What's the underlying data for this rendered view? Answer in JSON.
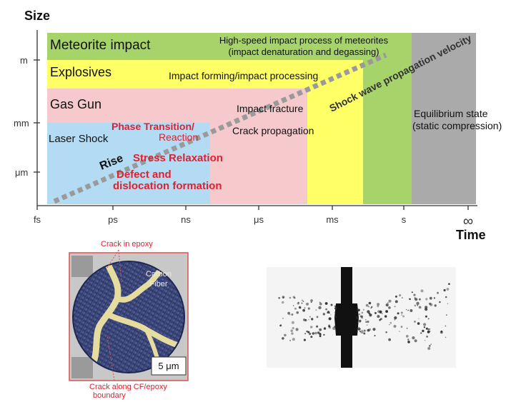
{
  "axes": {
    "y_title": "Size",
    "x_title": "Time",
    "y_ticks": [
      "m",
      "mm",
      "μm"
    ],
    "x_ticks": [
      "fs",
      "ps",
      "ns",
      "μs",
      "ms",
      "s",
      "∞"
    ]
  },
  "regions": {
    "meteorite": "Meteorite impact",
    "explosives": "Explosives",
    "gas_gun": "Gas Gun",
    "laser_shock": "Laser Shock",
    "equilibrium_line1": "Equilibrium state",
    "equilibrium_line2": "(static compression)"
  },
  "processes": {
    "high_speed_line1": "High-speed impact process of meteorites",
    "high_speed_line2": "(impact denaturation and degassing)",
    "impact_forming": "Impact forming/impact processing",
    "impact_fracture": "Impact fracture",
    "crack_propagation": "Crack propagation",
    "phase_line1": "Phase Transition/",
    "phase_line2": "Reaction",
    "stress_relaxation": "Stress Relaxation",
    "defect_line1": "Defect and",
    "defect_line2": "dislocation formation",
    "rise": "Rise",
    "shock_wave": "Shock wave propagation velocity"
  },
  "micrograph": {
    "crack_in_epoxy": "Crack in epoxy",
    "carbon_line1": "Carbon",
    "carbon_line2": "Fiber",
    "scale": "5 μm",
    "boundary_line1": "Crack along CF/epoxy",
    "boundary_line2": "boundary"
  },
  "colors": {
    "green": "#a6d36a",
    "yellow": "#ffff66",
    "pink": "#f6c9cd",
    "blue": "#b3dcf4",
    "gray": "#aaaaaa",
    "red_text": "#e0202f"
  }
}
